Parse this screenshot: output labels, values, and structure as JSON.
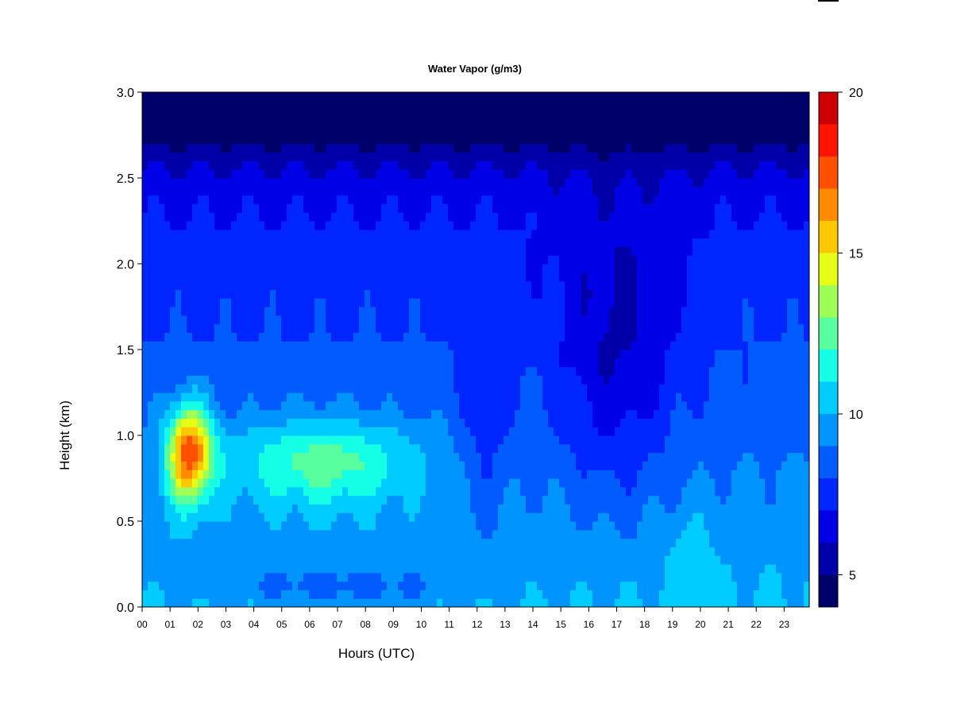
{
  "chart_data": {
    "type": "heatmap",
    "title": "Water Vapor (g/m3)",
    "xlabel": "Hours (UTC)",
    "ylabel": "Height (km)",
    "xlim": [
      0,
      23.9
    ],
    "ylim": [
      0.0,
      3.0
    ],
    "x_ticks": [
      "00",
      "01",
      "02",
      "03",
      "04",
      "05",
      "06",
      "07",
      "08",
      "09",
      "10",
      "11",
      "12",
      "13",
      "14",
      "15",
      "16",
      "17",
      "18",
      "19",
      "20",
      "21",
      "22",
      "23"
    ],
    "y_ticks": [
      "0.0",
      "0.5",
      "1.0",
      "1.5",
      "2.0",
      "2.5",
      "3.0"
    ],
    "colorbar": {
      "min": 4,
      "max": 20,
      "tick_labels": [
        "5",
        "10",
        "15",
        "20"
      ],
      "levels": [
        4,
        5,
        6,
        7,
        8,
        9,
        10,
        11,
        12,
        13,
        14,
        15,
        16,
        17,
        18,
        19,
        20
      ],
      "colors": [
        "#00006b",
        "#0000a8",
        "#0000e6",
        "#0026ff",
        "#005cff",
        "#0094ff",
        "#00ccff",
        "#14ffe6",
        "#57ff9e",
        "#9eff57",
        "#e6ff14",
        "#ffc800",
        "#ff8c00",
        "#ff5000",
        "#ff1400",
        "#cc0000",
        "#850000"
      ]
    },
    "features": [
      {
        "x": 1.7,
        "y": 0.9,
        "value": 19,
        "label": "moist maximum"
      },
      {
        "x": 7.5,
        "y": 0.85,
        "value": 13
      },
      {
        "x": 16.5,
        "y": 1.4,
        "value": 8
      },
      {
        "x": 9.8,
        "y": 2.95,
        "value": 4.5
      }
    ]
  }
}
